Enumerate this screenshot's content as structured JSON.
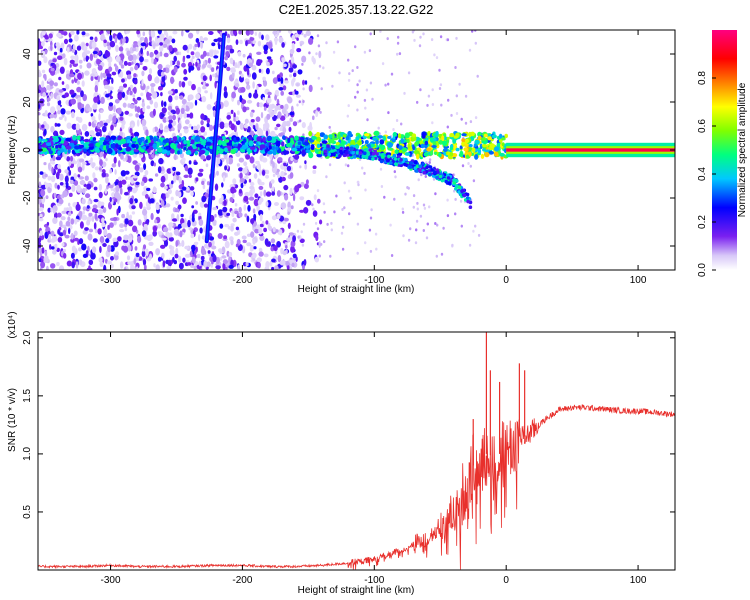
{
  "colors": {
    "snr_line": "#e8302c",
    "axis": "#000000"
  },
  "chart_data": [
    {
      "type": "heatmap",
      "title": "C2E1.2025.357.13.22.G22",
      "xlabel": "Height of straight line (km)",
      "ylabel": "Frequency (Hz)",
      "xlim": [
        -355,
        128
      ],
      "ylim": [
        -50,
        50
      ],
      "xticks": [
        -300,
        -200,
        -100,
        0,
        100
      ],
      "yticks": [
        -40,
        -20,
        0,
        20,
        40
      ],
      "colorbar": {
        "label": "Normalized spectral amplitude",
        "range": [
          0,
          1
        ],
        "ticks": [
          0.0,
          0.2,
          0.4,
          0.6,
          0.8
        ],
        "colormap": "rainbow (white/lavender → violet → blue → cyan → green → yellow → orange → red → magenta)"
      },
      "features": [
        {
          "description": "sparse scattered noise",
          "x_range": [
            -355,
            -140
          ],
          "freq_range": [
            -50,
            50
          ],
          "amplitude": 0.2
        },
        {
          "description": "inclined streak",
          "x_from": -227,
          "freq_from": -38,
          "x_to": -214,
          "freq_to": 48,
          "amplitude": 0.25
        },
        {
          "description": "signal band",
          "x_range": [
            -355,
            0
          ],
          "freq_center": 2,
          "amplitude": 0.35
        },
        {
          "description": "bending lower branch",
          "x_points": [
            -140,
            -100,
            -60,
            -40,
            -27
          ],
          "freq_points": [
            0,
            -2,
            -8,
            -13,
            -22
          ]
        },
        {
          "description": "steady carrier",
          "x_range": [
            0,
            128
          ],
          "freq_center": 0,
          "amplitude": 0.95
        }
      ]
    },
    {
      "type": "line",
      "title": "",
      "xlabel": "Height of straight line (km)",
      "ylabel": "SNR (10 * v/v)",
      "y_multiplier": "(x10⁴)",
      "xlim": [
        -355,
        128
      ],
      "ylim": [
        0,
        2.05
      ],
      "xticks": [
        -300,
        -200,
        -100,
        0,
        100
      ],
      "yticks": [
        0.5,
        1.0,
        1.5,
        2.0
      ],
      "grid": false,
      "series": [
        {
          "color": "#e8302c",
          "x": [
            -355,
            -320,
            -300,
            -280,
            -250,
            -220,
            -200,
            -180,
            -160,
            -140,
            -120,
            -100,
            -90,
            -80,
            -70,
            -60,
            -50,
            -40,
            -35,
            -30,
            -25,
            -20,
            -15,
            -10,
            -5,
            0,
            5,
            10,
            15,
            20,
            30,
            40,
            50,
            60,
            70,
            80,
            90,
            100,
            110,
            128
          ],
          "y": [
            0.03,
            0.03,
            0.04,
            0.03,
            0.03,
            0.04,
            0.04,
            0.03,
            0.03,
            0.04,
            0.06,
            0.09,
            0.13,
            0.17,
            0.22,
            0.28,
            0.38,
            0.52,
            0.6,
            0.75,
            0.9,
            0.95,
            1.0,
            0.98,
            1.0,
            1.05,
            1.08,
            1.15,
            1.15,
            1.2,
            1.3,
            1.38,
            1.4,
            1.4,
            1.39,
            1.38,
            1.37,
            1.37,
            1.36,
            1.34
          ]
        }
      ],
      "spikes": [
        {
          "x": -25,
          "y": 1.3
        },
        {
          "x": -15,
          "y": 2.05
        },
        {
          "x": -12,
          "y": 1.72
        },
        {
          "x": -5,
          "y": 1.62
        },
        {
          "x": 10,
          "y": 1.78
        },
        {
          "x": 14,
          "y": 1.72
        }
      ]
    }
  ]
}
